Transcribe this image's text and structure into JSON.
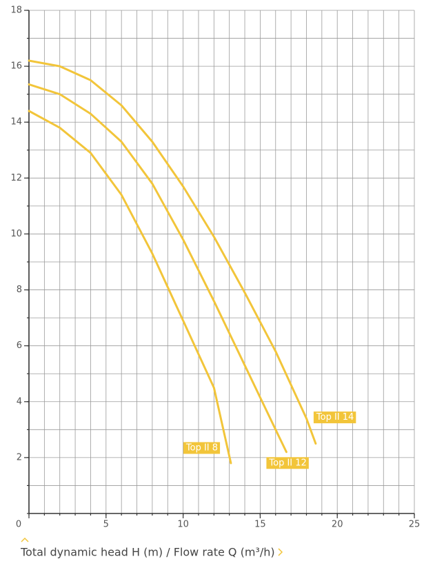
{
  "chart_data": {
    "type": "line",
    "x_label": "Total dynamic head H (m) / Flow rate Q (m³/h)",
    "xlim": [
      0,
      25
    ],
    "xticks": [
      0,
      5,
      10,
      15,
      20,
      25
    ],
    "ylim": [
      0,
      18
    ],
    "yticks": [
      2,
      4,
      6,
      8,
      10,
      12,
      14,
      16,
      18
    ],
    "grid": true,
    "grid_step": 1,
    "series": [
      {
        "name": "Top II 14",
        "color": "#f2c53a",
        "x": [
          0,
          2,
          4,
          6,
          8,
          10,
          12,
          14,
          16,
          18,
          18.6
        ],
        "values": [
          16.2,
          16.0,
          15.5,
          14.6,
          13.3,
          11.7,
          9.9,
          7.9,
          5.8,
          3.4,
          2.5
        ]
      },
      {
        "name": "Top II 12",
        "color": "#f2c53a",
        "x": [
          0,
          2,
          4,
          6,
          8,
          10,
          12,
          14,
          16,
          16.7
        ],
        "values": [
          15.35,
          15.0,
          14.3,
          13.3,
          11.8,
          9.8,
          7.6,
          5.3,
          3.0,
          2.2
        ]
      },
      {
        "name": "Top II 8",
        "color": "#f2c53a",
        "x": [
          0,
          2,
          4,
          6,
          8,
          10,
          12,
          13.1
        ],
        "values": [
          14.4,
          13.8,
          12.9,
          11.4,
          9.3,
          6.9,
          4.5,
          1.8
        ]
      }
    ]
  }
}
